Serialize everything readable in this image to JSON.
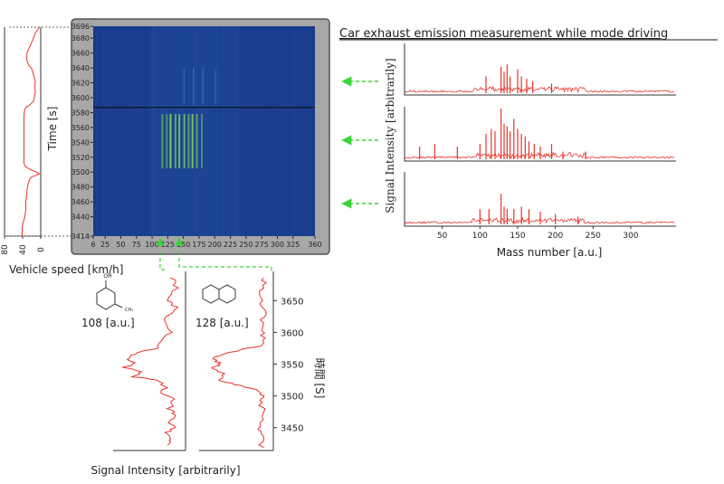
{
  "chart_data": [
    {
      "id": "vehicle_speed",
      "type": "line",
      "xlabel": "Vehicle speed [km/h]",
      "ylabel": "",
      "xlim": [
        80,
        0
      ],
      "ylim": [
        3414,
        3696
      ],
      "x_ticks": [
        "80",
        "40",
        "0"
      ],
      "series": [
        {
          "color": "#e8332a",
          "points": [
            [
              3,
              3696
            ],
            [
              12,
              3688
            ],
            [
              18,
              3678
            ],
            [
              24,
              3670
            ],
            [
              30,
              3662
            ],
            [
              31,
              3652
            ],
            [
              27,
              3645
            ],
            [
              20,
              3640
            ],
            [
              17,
              3634
            ],
            [
              14,
              3628
            ],
            [
              12,
              3622
            ],
            [
              13,
              3616
            ],
            [
              12,
              3608
            ],
            [
              14,
              3602
            ],
            [
              16,
              3596
            ],
            [
              26,
              3590
            ],
            [
              33,
              3588
            ],
            [
              36,
              3582
            ],
            [
              37,
              3575
            ],
            [
              37,
              3560
            ],
            [
              37,
              3540
            ],
            [
              37,
              3520
            ],
            [
              37,
              3512
            ],
            [
              34,
              3508
            ],
            [
              26,
              3505
            ],
            [
              16,
              3502
            ],
            [
              8,
              3500
            ],
            [
              3,
              3498
            ],
            [
              10,
              3496
            ],
            [
              20,
              3494
            ],
            [
              25,
              3490
            ],
            [
              28,
              3484
            ],
            [
              30,
              3478
            ],
            [
              31,
              3470
            ],
            [
              33,
              3460
            ],
            [
              33,
              3450
            ],
            [
              35,
              3440
            ],
            [
              38,
              3434
            ],
            [
              40,
              3430
            ],
            [
              41,
              3424
            ],
            [
              41,
              3418
            ],
            [
              41,
              3414
            ]
          ]
        }
      ]
    },
    {
      "id": "heatmap",
      "type": "heatmap",
      "xlabel": "",
      "ylabel": "Time [s]",
      "xlim": [
        0,
        360
      ],
      "ylim": [
        3414,
        3696
      ],
      "x_ticks": [
        6,
        25,
        50,
        75,
        100,
        125,
        150,
        175,
        200,
        225,
        250,
        275,
        300,
        325,
        360
      ],
      "y_ticks": [
        3414,
        3440,
        3460,
        3480,
        3500,
        3520,
        3540,
        3560,
        3580,
        3600,
        3620,
        3640,
        3660,
        3680,
        3696
      ],
      "marker_time": 3587,
      "highlight_columns": [
        [
          108,
          "#3aff3a"
        ],
        [
          128,
          "#3aff3a"
        ]
      ],
      "background": "#1a3a8c"
    },
    {
      "id": "mass_spectra",
      "type": "line",
      "title": "Car exhaust emission measurement while mode driving",
      "xlabel": "Mass number [a.u.]",
      "ylabel": "Signal Intensity [arbitrarily]",
      "xlim": [
        0,
        360
      ],
      "x_ticks": [
        "50",
        "100",
        "150",
        "200",
        "250",
        "300"
      ],
      "panels": [
        {
          "peaks": [
            [
              108,
              0.35
            ],
            [
              128,
              0.55
            ],
            [
              132,
              0.45
            ],
            [
              136,
              0.6
            ],
            [
              140,
              0.35
            ],
            [
              150,
              0.5
            ],
            [
              155,
              0.35
            ],
            [
              162,
              0.3
            ],
            [
              170,
              0.25
            ],
            [
              195,
              0.2
            ]
          ]
        },
        {
          "peaks": [
            [
              20,
              0.25
            ],
            [
              40,
              0.3
            ],
            [
              70,
              0.25
            ],
            [
              100,
              0.3
            ],
            [
              108,
              0.5
            ],
            [
              115,
              0.6
            ],
            [
              120,
              0.55
            ],
            [
              128,
              1.0
            ],
            [
              132,
              0.7
            ],
            [
              136,
              0.65
            ],
            [
              140,
              0.55
            ],
            [
              145,
              0.8
            ],
            [
              150,
              0.6
            ],
            [
              155,
              0.5
            ],
            [
              160,
              0.45
            ],
            [
              165,
              0.35
            ],
            [
              172,
              0.3
            ],
            [
              180,
              0.25
            ],
            [
              195,
              0.3
            ],
            [
              210,
              0.15
            ],
            [
              240,
              0.15
            ]
          ]
        },
        {
          "peaks": [
            [
              100,
              0.3
            ],
            [
              112,
              0.3
            ],
            [
              128,
              0.6
            ],
            [
              132,
              0.35
            ],
            [
              136,
              0.3
            ],
            [
              145,
              0.3
            ],
            [
              155,
              0.35
            ],
            [
              165,
              0.3
            ],
            [
              180,
              0.25
            ],
            [
              200,
              0.2
            ],
            [
              230,
              0.15
            ]
          ]
        }
      ]
    },
    {
      "id": "timeprofile_108",
      "type": "line",
      "series_label": "108 [a.u.]",
      "series": [
        {
          "color": "#e8332a",
          "points": [
            [
              0.85,
              3686
            ],
            [
              0.9,
              3670
            ],
            [
              0.8,
              3650
            ],
            [
              0.88,
              3640
            ],
            [
              0.75,
              3620
            ],
            [
              0.8,
              3600
            ],
            [
              0.7,
              3585
            ],
            [
              0.6,
              3575
            ],
            [
              0.35,
              3568
            ],
            [
              0.2,
              3560
            ],
            [
              0.3,
              3550
            ],
            [
              0.15,
              3545
            ],
            [
              0.4,
              3538
            ],
            [
              0.3,
              3530
            ],
            [
              0.6,
              3525
            ],
            [
              0.75,
              3515
            ],
            [
              0.7,
              3505
            ],
            [
              0.85,
              3495
            ],
            [
              0.8,
              3480
            ],
            [
              0.88,
              3470
            ],
            [
              0.8,
              3460
            ],
            [
              0.85,
              3450
            ],
            [
              0.75,
              3440
            ],
            [
              0.82,
              3430
            ],
            [
              0.78,
              3420
            ]
          ]
        }
      ]
    },
    {
      "id": "timeprofile_128",
      "type": "line",
      "series_label": "128 [a.u.]",
      "ylabel": "時間 [S]",
      "ylim": [
        3414,
        3696
      ],
      "y_ticks": [
        "3650",
        "3600",
        "3550",
        "3500",
        "3450"
      ],
      "series": [
        {
          "color": "#e8332a",
          "points": [
            [
              0.9,
              3686
            ],
            [
              0.88,
              3670
            ],
            [
              0.85,
              3650
            ],
            [
              0.9,
              3630
            ],
            [
              0.86,
              3610
            ],
            [
              0.88,
              3595
            ],
            [
              0.9,
              3580
            ],
            [
              0.55,
              3572
            ],
            [
              0.3,
              3565
            ],
            [
              0.2,
              3558
            ],
            [
              0.3,
              3550
            ],
            [
              0.18,
              3542
            ],
            [
              0.35,
              3535
            ],
            [
              0.25,
              3525
            ],
            [
              0.5,
              3518
            ],
            [
              0.8,
              3510
            ],
            [
              0.9,
              3500
            ],
            [
              0.85,
              3490
            ],
            [
              0.9,
              3470
            ],
            [
              0.82,
              3455
            ],
            [
              0.88,
              3440
            ],
            [
              0.84,
              3425
            ],
            [
              0.88,
              3416
            ]
          ]
        }
      ]
    }
  ],
  "shared": {
    "profiles_xlabel": "Signal Intensity [arbitrarily]"
  }
}
